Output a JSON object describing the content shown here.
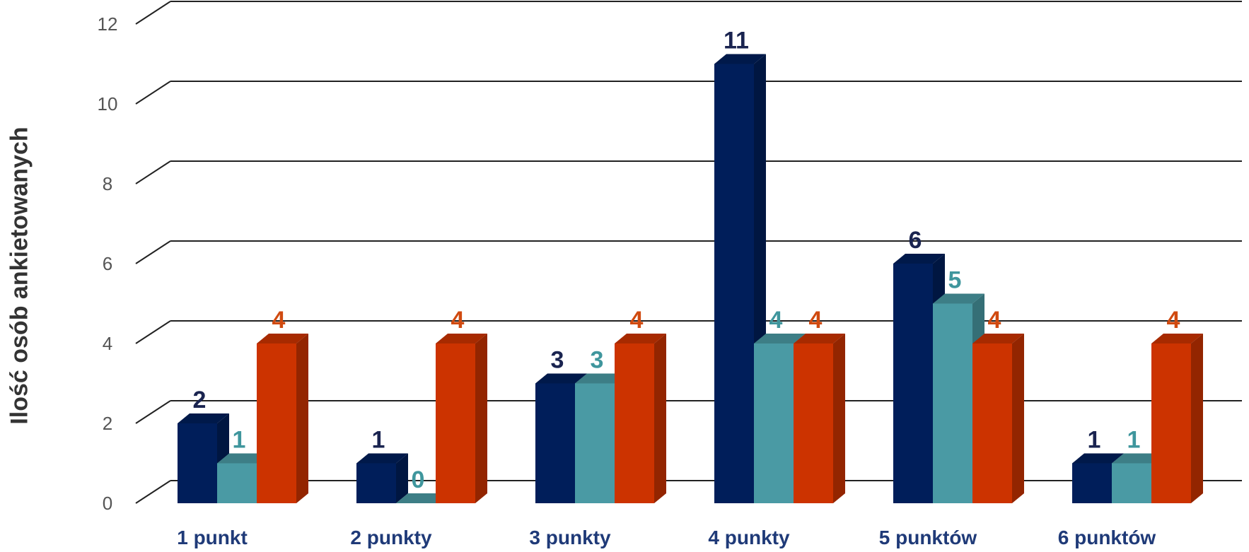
{
  "chart_data": {
    "type": "bar",
    "title": "",
    "xlabel": "",
    "ylabel": "Ilość osób ankietowanych",
    "ylim": [
      0,
      12
    ],
    "yticks": [
      0,
      2,
      4,
      6,
      8,
      10,
      12
    ],
    "grid": true,
    "legend": "none",
    "categories": [
      "1 punkt",
      "2 punkty",
      "3 punkty",
      "4 punkty",
      "5 punktów",
      "6 punktów"
    ],
    "series": [
      {
        "values": [
          2,
          1,
          3,
          11,
          6,
          1
        ],
        "color": "#001E5A",
        "label_color": "#1A2450"
      },
      {
        "values": [
          1,
          0,
          3,
          4,
          5,
          1
        ],
        "color": "#4A9AA4",
        "label_color": "#3F969D"
      },
      {
        "values": [
          4,
          4,
          4,
          4,
          4,
          4
        ],
        "color": "#CC3300",
        "label_color": "#D04A10"
      }
    ],
    "colors": {
      "category_label": "#1F3A78",
      "tick_label": "#555555",
      "grid": "#222222"
    }
  }
}
